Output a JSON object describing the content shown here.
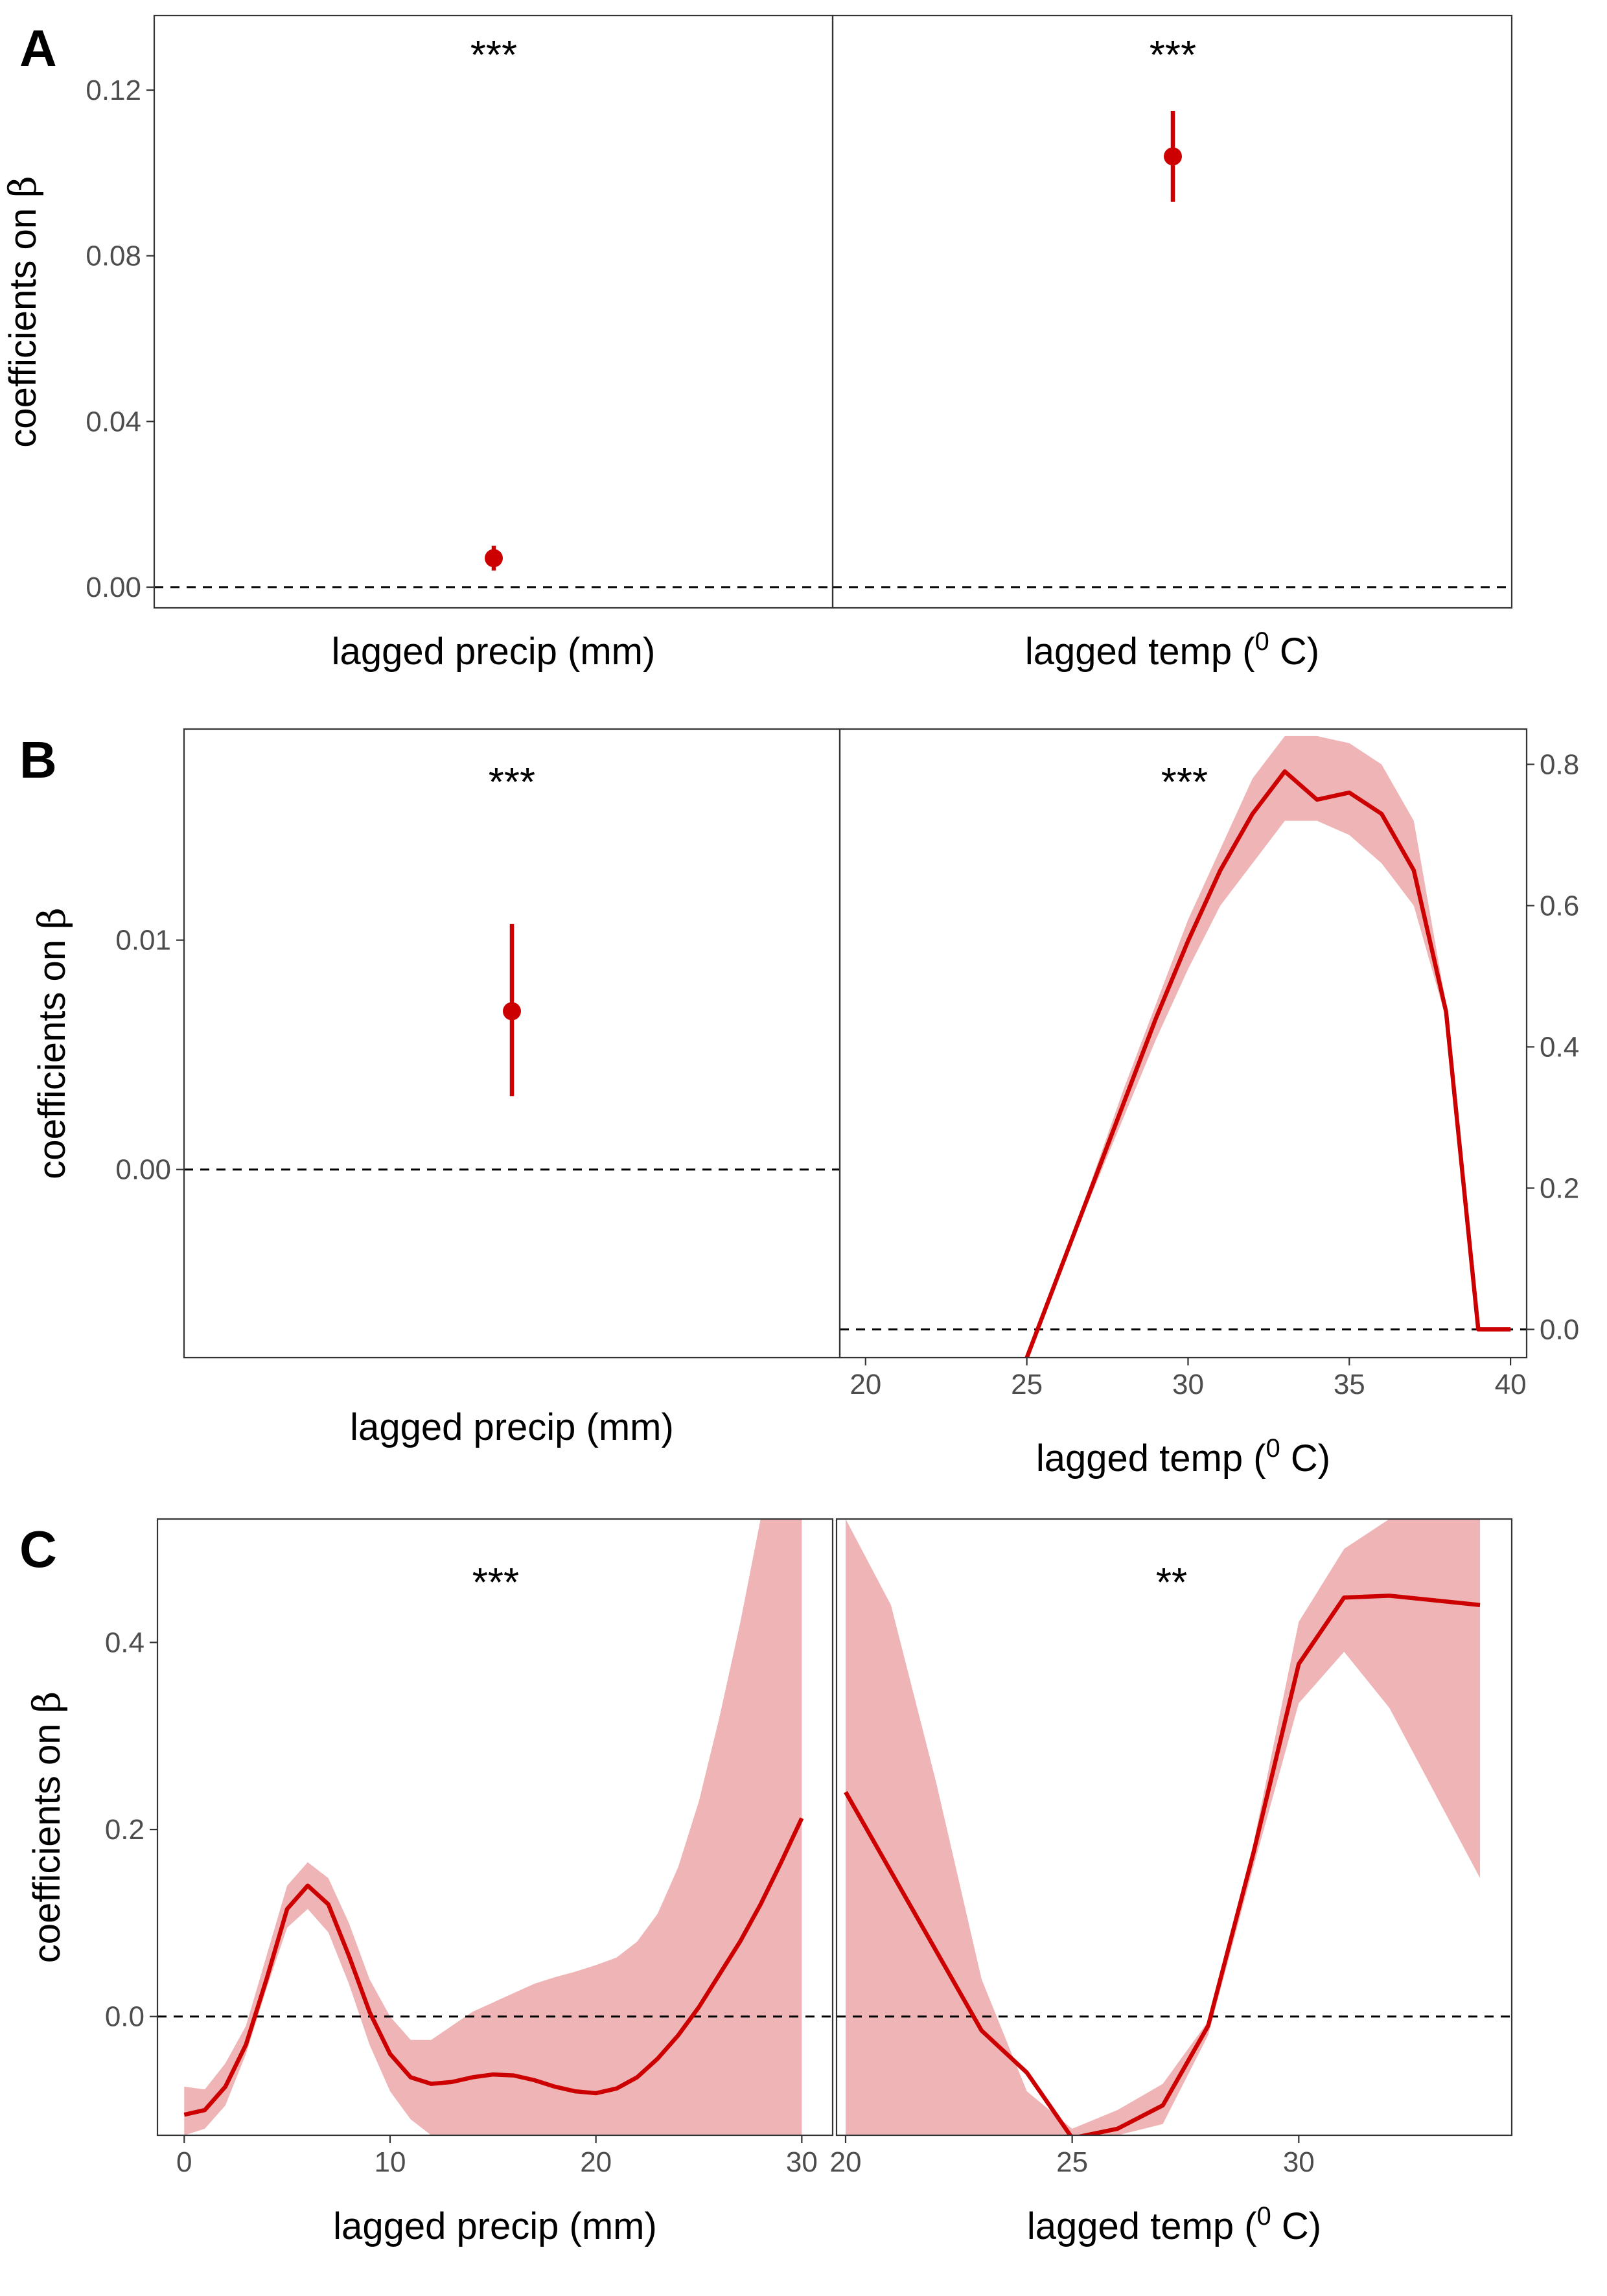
{
  "figure": {
    "colors": {
      "line": "#cc0000",
      "ribbon": "#efb4b5",
      "frame": "#333333",
      "tick_text": "#4d4d4d"
    },
    "ylabel_text": "coefficients on ",
    "ylabel_symbol": "β"
  },
  "chart_data": [
    {
      "panel": "A",
      "type": "scatter",
      "ylabel": "coefficients on β",
      "ylim": [
        -0.005,
        0.138
      ],
      "yticks": [
        0.0,
        0.04,
        0.08,
        0.12
      ],
      "ytick_labels": [
        "0.00",
        "0.04",
        "0.08",
        "0.12"
      ],
      "facets": [
        {
          "xlabel": "lagged precip (mm)",
          "significance": "***",
          "estimate": 0.007,
          "ci": [
            0.004,
            0.01
          ],
          "x_ticks_shown": false
        },
        {
          "xlabel": "lagged temp (⁰ C)",
          "significance": "***",
          "estimate": 0.104,
          "ci": [
            0.093,
            0.115
          ],
          "x_ticks_shown": false
        }
      ],
      "reference_line": 0
    },
    {
      "panel": "B",
      "type": "mixed",
      "facets": [
        {
          "type": "scatter",
          "xlabel": "lagged precip (mm)",
          "ylabel": "coefficients on β",
          "significance": "***",
          "ylim": [
            -0.0082,
            0.0192
          ],
          "yticks": [
            0.0,
            0.01
          ],
          "ytick_labels": [
            "0.00",
            "0.01"
          ],
          "estimate": 0.0069,
          "ci": [
            0.0032,
            0.0107
          ],
          "reference_line": 0
        },
        {
          "type": "line",
          "xlabel": "lagged temp (⁰ C)",
          "significance": "***",
          "xlim": [
            19.2,
            40.5
          ],
          "xticks": [
            20,
            25,
            30,
            35,
            40
          ],
          "ylim": [
            -0.04,
            0.85
          ],
          "yticks": [
            0.0,
            0.2,
            0.4,
            0.6,
            0.8
          ],
          "ytick_labels": [
            "0.0",
            "0.2",
            "0.4",
            "0.6",
            "0.8"
          ],
          "yaxis_side": "right",
          "reference_line": 0,
          "line": {
            "x": [
              25,
              26,
              27,
              28,
              29,
              30,
              31,
              32,
              33,
              34,
              35,
              36,
              37,
              38,
              39,
              40
            ],
            "y": [
              -0.04,
              0.08,
              0.2,
              0.32,
              0.44,
              0.55,
              0.65,
              0.73,
              0.79,
              0.75,
              0.76,
              0.73,
              0.65,
              0.45,
              0.0,
              0.0
            ]
          },
          "ribbon": {
            "x": [
              25,
              26,
              27,
              28,
              29,
              30,
              31,
              32,
              33,
              34,
              35,
              36,
              37,
              38,
              39
            ],
            "lower": [
              -0.04,
              0.08,
              0.19,
              0.3,
              0.41,
              0.51,
              0.6,
              0.66,
              0.72,
              0.72,
              0.7,
              0.66,
              0.6,
              0.44,
              0.0
            ],
            "upper": [
              -0.04,
              0.08,
              0.21,
              0.34,
              0.46,
              0.58,
              0.68,
              0.78,
              0.84,
              0.84,
              0.83,
              0.8,
              0.72,
              0.46,
              0.0
            ]
          }
        }
      ]
    },
    {
      "panel": "C",
      "type": "line",
      "ylabel": "coefficients on β",
      "ylim": [
        -0.127,
        0.532
      ],
      "yticks": [
        0.0,
        0.2,
        0.4
      ],
      "ytick_labels": [
        "0.0",
        "0.2",
        "0.4"
      ],
      "reference_line": 0,
      "facets": [
        {
          "xlabel": "lagged precip (mm)",
          "significance": "***",
          "xlim": [
            -1.3,
            31.5
          ],
          "xticks": [
            0,
            10,
            20,
            30
          ],
          "line": {
            "x": [
              0,
              1,
              2,
              3,
              4,
              5,
              6,
              7,
              8,
              9,
              10,
              11,
              12,
              13,
              14,
              15,
              16,
              17,
              18,
              19,
              20,
              21,
              22,
              23,
              24,
              25,
              26,
              27,
              28,
              29,
              30
            ],
            "y": [
              -0.105,
              -0.1,
              -0.075,
              -0.03,
              0.04,
              0.115,
              0.14,
              0.12,
              0.065,
              0.005,
              -0.04,
              -0.065,
              -0.072,
              -0.07,
              -0.065,
              -0.062,
              -0.063,
              -0.068,
              -0.075,
              -0.08,
              -0.082,
              -0.077,
              -0.065,
              -0.045,
              -0.02,
              0.01,
              0.045,
              0.08,
              0.12,
              0.165,
              0.212
            ]
          },
          "ribbon": {
            "x": [
              0,
              1,
              2,
              3,
              4,
              5,
              6,
              7,
              8,
              9,
              10,
              11,
              12,
              13,
              14,
              15,
              16,
              17,
              18,
              19,
              20,
              21,
              22,
              23,
              24,
              25,
              26,
              27,
              28,
              29,
              30
            ],
            "lower": [
              -0.127,
              -0.12,
              -0.095,
              -0.04,
              0.03,
              0.095,
              0.115,
              0.09,
              0.035,
              -0.03,
              -0.08,
              -0.11,
              -0.127,
              -0.127,
              -0.127,
              -0.127,
              -0.127,
              -0.127,
              -0.127,
              -0.127,
              -0.127,
              -0.127,
              -0.127,
              -0.127,
              -0.127,
              -0.127,
              -0.127,
              -0.127,
              -0.127,
              -0.127,
              -0.127
            ],
            "upper": [
              -0.075,
              -0.078,
              -0.05,
              -0.01,
              0.065,
              0.14,
              0.165,
              0.148,
              0.1,
              0.04,
              0.0,
              -0.025,
              -0.025,
              -0.01,
              0.005,
              0.015,
              0.025,
              0.035,
              0.042,
              0.048,
              0.055,
              0.063,
              0.08,
              0.11,
              0.16,
              0.23,
              0.32,
              0.42,
              0.532,
              0.532,
              0.532
            ]
          }
        },
        {
          "xlabel": "lagged temp (⁰ C)",
          "significance": "**",
          "xlim": [
            19.8,
            34.7
          ],
          "xticks": [
            20,
            25,
            30
          ],
          "line": {
            "x": [
              20,
              21,
              22,
              23,
              24,
              25,
              26,
              27,
              28,
              29,
              30,
              31,
              32,
              34
            ],
            "y": [
              0.24,
              0.155,
              0.07,
              -0.015,
              -0.06,
              -0.13,
              -0.12,
              -0.095,
              -0.01,
              0.175,
              0.377,
              0.448,
              0.45,
              0.44
            ]
          },
          "ribbon": {
            "x": [
              20,
              21,
              22,
              23,
              24,
              25,
              26,
              27,
              28,
              29,
              30,
              31,
              32,
              34
            ],
            "lower": [
              -0.127,
              -0.127,
              -0.127,
              -0.127,
              -0.127,
              -0.127,
              -0.127,
              -0.115,
              -0.02,
              0.16,
              0.335,
              0.39,
              0.33,
              0.148
            ],
            "upper": [
              0.532,
              0.44,
              0.25,
              0.04,
              -0.08,
              -0.12,
              -0.1,
              -0.072,
              -0.005,
              0.185,
              0.422,
              0.5,
              0.532,
              0.532
            ]
          }
        }
      ]
    }
  ]
}
